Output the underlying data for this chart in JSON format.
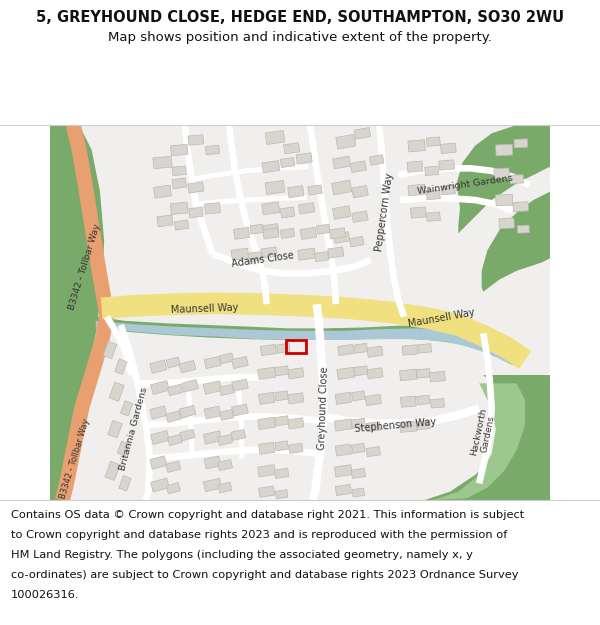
{
  "title_line1": "5, GREYHOUND CLOSE, HEDGE END, SOUTHAMPTON, SO30 2WU",
  "title_line2": "Map shows position and indicative extent of the property.",
  "footer_lines": [
    "Contains OS data © Crown copyright and database right 2021. This information is subject",
    "to Crown copyright and database rights 2023 and is reproduced with the permission of",
    "HM Land Registry. The polygons (including the associated geometry, namely x, y",
    "co-ordinates) are subject to Crown copyright and database rights 2023 Ordnance Survey",
    "100026316."
  ],
  "map_bg": "#f0efed",
  "road_yellow": "#f0e080",
  "road_white": "#ffffff",
  "green_dark": "#7aaa6a",
  "green_light": "#9dc88d",
  "water_blue": "#aac8d5",
  "road_salmon": "#e8a070",
  "road_salmon_light": "#f0b890",
  "building_color": "#d8d5ce",
  "building_outline": "#bcb9b2",
  "highlight_red": "#cc0000",
  "title_fontsize": 10.5,
  "subtitle_fontsize": 9.5,
  "footer_fontsize": 8.2,
  "label_color": "#333333"
}
